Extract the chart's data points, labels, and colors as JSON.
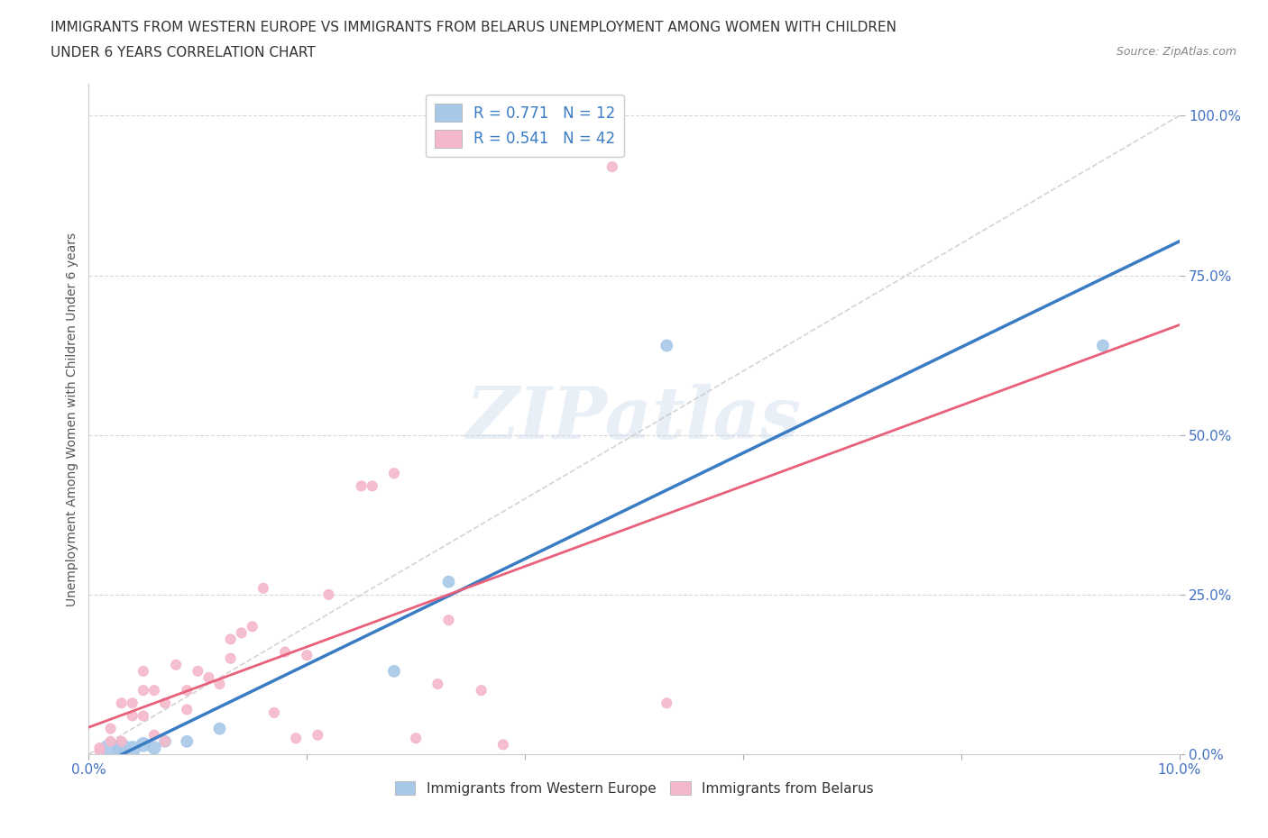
{
  "title_line1": "IMMIGRANTS FROM WESTERN EUROPE VS IMMIGRANTS FROM BELARUS UNEMPLOYMENT AMONG WOMEN WITH CHILDREN",
  "title_line2": "UNDER 6 YEARS CORRELATION CHART",
  "source": "Source: ZipAtlas.com",
  "ylabel": "Unemployment Among Women with Children Under 6 years",
  "xlim": [
    0.0,
    0.1
  ],
  "ylim": [
    0.0,
    1.05
  ],
  "x_ticks": [
    0.0,
    0.02,
    0.04,
    0.06,
    0.08,
    0.1
  ],
  "x_tick_labels_show": {
    "0.00": "0.0%",
    "0.10": "10.0%"
  },
  "y_ticks": [
    0.0,
    0.25,
    0.5,
    0.75,
    1.0
  ],
  "y_tick_labels": [
    "0.0%",
    "25.0%",
    "50.0%",
    "75.0%",
    "100.0%"
  ],
  "blue_color": "#A8C8E8",
  "pink_color": "#F4B8CB",
  "blue_line_color": "#3A7CC4",
  "pink_line_color": "#E8607A",
  "diag_color": "#C8C8C8",
  "watermark": "ZIPatlas",
  "legend_R_blue": "R = 0.771",
  "legend_N_blue": "N = 12",
  "legend_R_pink": "R = 0.541",
  "legend_N_pink": "N = 42",
  "legend_text_color": "#3A7CC4",
  "blue_label": "Immigrants from Western Europe",
  "pink_label": "Immigrants from Belarus",
  "blue_points_x": [
    0.002,
    0.003,
    0.004,
    0.005,
    0.006,
    0.007,
    0.009,
    0.012,
    0.028,
    0.033,
    0.053,
    0.093
  ],
  "blue_points_y": [
    0.005,
    0.01,
    0.008,
    0.015,
    0.01,
    0.02,
    0.02,
    0.04,
    0.13,
    0.27,
    0.64,
    0.64
  ],
  "blue_sizes": [
    350,
    200,
    150,
    120,
    100,
    80,
    80,
    80,
    80,
    80,
    80,
    80
  ],
  "pink_points_x": [
    0.001,
    0.001,
    0.002,
    0.002,
    0.003,
    0.003,
    0.004,
    0.004,
    0.005,
    0.005,
    0.005,
    0.006,
    0.006,
    0.007,
    0.007,
    0.008,
    0.009,
    0.009,
    0.01,
    0.011,
    0.012,
    0.013,
    0.013,
    0.014,
    0.015,
    0.016,
    0.017,
    0.018,
    0.019,
    0.02,
    0.021,
    0.022,
    0.025,
    0.026,
    0.028,
    0.03,
    0.032,
    0.033,
    0.036,
    0.038,
    0.048,
    0.053
  ],
  "pink_points_y": [
    0.005,
    0.01,
    0.02,
    0.04,
    0.02,
    0.08,
    0.06,
    0.08,
    0.06,
    0.1,
    0.13,
    0.03,
    0.1,
    0.02,
    0.08,
    0.14,
    0.07,
    0.1,
    0.13,
    0.12,
    0.11,
    0.15,
    0.18,
    0.19,
    0.2,
    0.26,
    0.065,
    0.16,
    0.025,
    0.155,
    0.03,
    0.25,
    0.42,
    0.42,
    0.44,
    0.025,
    0.11,
    0.21,
    0.1,
    0.015,
    0.92,
    0.08
  ],
  "pink_sizes": [
    60,
    60,
    60,
    60,
    60,
    60,
    60,
    60,
    60,
    60,
    60,
    60,
    60,
    60,
    60,
    60,
    60,
    60,
    60,
    60,
    60,
    60,
    60,
    60,
    60,
    60,
    60,
    60,
    60,
    60,
    60,
    60,
    60,
    60,
    60,
    60,
    60,
    60,
    60,
    60,
    60,
    60
  ],
  "blue_line_x": [
    0.0,
    0.1
  ],
  "blue_line_y": [
    -0.05,
    0.88
  ],
  "pink_line_x": [
    0.002,
    0.028
  ],
  "pink_line_y": [
    -0.02,
    0.46
  ]
}
